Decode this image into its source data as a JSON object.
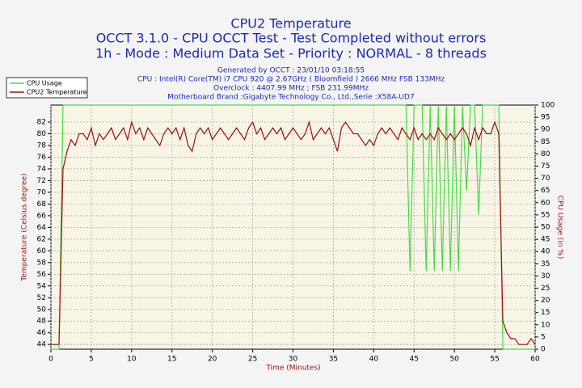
{
  "chart_data": {
    "type": "line",
    "title": "CPU2 Temperature",
    "subtitle": [
      "OCCT 3.1.0 - CPU OCCT Test - Test Completed without errors",
      "1h - Mode : Medium Data Set - Priority : NORMAL - 8 threads"
    ],
    "info": [
      "Generated by OCCT : 23/01/10 03:18:55",
      "CPU : Intel(R) Core(TM) i7 CPU 920 @ 2.67GHz ( Bloomfield ) 2666 MHz FSB 133MHz",
      "Overclock : 4407.99 MHz ; FSB 231.99MHz",
      "Motherboard Brand :Gigabyte Technology Co., Ltd.,Serie :X58A-UD7"
    ],
    "x_label": "Time (Minutes)",
    "y_label": "Temperature (Celsius degree)",
    "y2_label": "CPU Usage (in %)",
    "xlim": [
      0,
      60
    ],
    "xticks": [
      0,
      5,
      10,
      15,
      20,
      25,
      30,
      35,
      40,
      45,
      50,
      55,
      60
    ],
    "ylim": [
      43.2,
      84.9
    ],
    "yticks": [
      44,
      46,
      48,
      50,
      52,
      54,
      56,
      58,
      60,
      62,
      64,
      66,
      68,
      70,
      72,
      74,
      76,
      78,
      80,
      82
    ],
    "y2lim": [
      0,
      100
    ],
    "y2ticks": [
      0,
      5,
      10,
      15,
      20,
      25,
      30,
      35,
      40,
      45,
      50,
      55,
      60,
      65,
      70,
      75,
      80,
      85,
      90,
      95,
      100
    ],
    "grid": true,
    "x": [
      0,
      0.5,
      1,
      1.5,
      2,
      2.5,
      3,
      3.5,
      4,
      4.5,
      5,
      5.5,
      6,
      6.5,
      7,
      7.5,
      8,
      8.5,
      9,
      9.5,
      10,
      10.5,
      11,
      11.5,
      12,
      12.5,
      13,
      13.5,
      14,
      14.5,
      15,
      15.5,
      16,
      16.5,
      17,
      17.5,
      18,
      18.5,
      19,
      19.5,
      20,
      20.5,
      21,
      21.5,
      22,
      22.5,
      23,
      23.5,
      24,
      24.5,
      25,
      25.5,
      26,
      26.5,
      27,
      27.5,
      28,
      28.5,
      29,
      29.5,
      30,
      30.5,
      31,
      31.5,
      32,
      32.5,
      33,
      33.5,
      34,
      34.5,
      35,
      35.5,
      36,
      36.5,
      37,
      37.5,
      38,
      38.5,
      39,
      39.5,
      40,
      40.5,
      41,
      41.5,
      42,
      42.5,
      43,
      43.5,
      44,
      44.5,
      45,
      45.5,
      46,
      46.5,
      47,
      47.5,
      48,
      48.5,
      49,
      49.5,
      50,
      50.5,
      51,
      51.5,
      52,
      52.5,
      53,
      53.5,
      54,
      54.5,
      55,
      55.5,
      56,
      56.5,
      57,
      57.5,
      58,
      58.5,
      59,
      59.5,
      60
    ],
    "series": [
      {
        "name": "CPU Usage",
        "color": "#44dd44",
        "axis": "y2",
        "values": [
          0,
          0,
          0,
          100,
          100,
          100,
          100,
          100,
          100,
          100,
          100,
          100,
          100,
          100,
          100,
          100,
          100,
          100,
          100,
          100,
          100,
          100,
          100,
          100,
          100,
          100,
          100,
          100,
          100,
          100,
          100,
          100,
          100,
          100,
          100,
          100,
          100,
          100,
          100,
          100,
          100,
          100,
          100,
          100,
          100,
          100,
          100,
          100,
          100,
          100,
          100,
          100,
          100,
          100,
          100,
          100,
          100,
          100,
          100,
          100,
          100,
          100,
          100,
          100,
          100,
          100,
          100,
          100,
          100,
          100,
          100,
          100,
          100,
          100,
          100,
          100,
          100,
          100,
          100,
          100,
          100,
          100,
          100,
          100,
          100,
          100,
          100,
          100,
          100,
          32,
          100,
          100,
          100,
          32,
          100,
          32,
          100,
          32,
          100,
          32,
          100,
          32,
          100,
          65,
          100,
          100,
          55,
          100,
          100,
          100,
          100,
          100,
          0,
          0,
          0,
          0,
          0,
          0,
          0,
          0,
          0
        ]
      },
      {
        "name": "CPU2 Temperature",
        "color": "#9b1010",
        "values": [
          44,
          44,
          44,
          74,
          77,
          79,
          78,
          80,
          80,
          79,
          81,
          78,
          80,
          79,
          80,
          81,
          79,
          80,
          81,
          79,
          82,
          80,
          81,
          79,
          81,
          80,
          79,
          78,
          80,
          81,
          80,
          81,
          79,
          81,
          78,
          77,
          80,
          81,
          80,
          81,
          79,
          80,
          81,
          80,
          79,
          80,
          81,
          80,
          79,
          81,
          82,
          80,
          81,
          79,
          80,
          81,
          80,
          81,
          79,
          80,
          81,
          80,
          79,
          80,
          82,
          79,
          80,
          81,
          80,
          81,
          79,
          77,
          81,
          82,
          81,
          80,
          80,
          79,
          78,
          79,
          78,
          80,
          81,
          80,
          81,
          80,
          79,
          81,
          80,
          79,
          81,
          79,
          80,
          79,
          80,
          79,
          81,
          80,
          79,
          80,
          79,
          80,
          81,
          80,
          78,
          81,
          79,
          81,
          80,
          80,
          82,
          80,
          48,
          46,
          45,
          45,
          44,
          44,
          44,
          45,
          44
        ]
      }
    ]
  }
}
